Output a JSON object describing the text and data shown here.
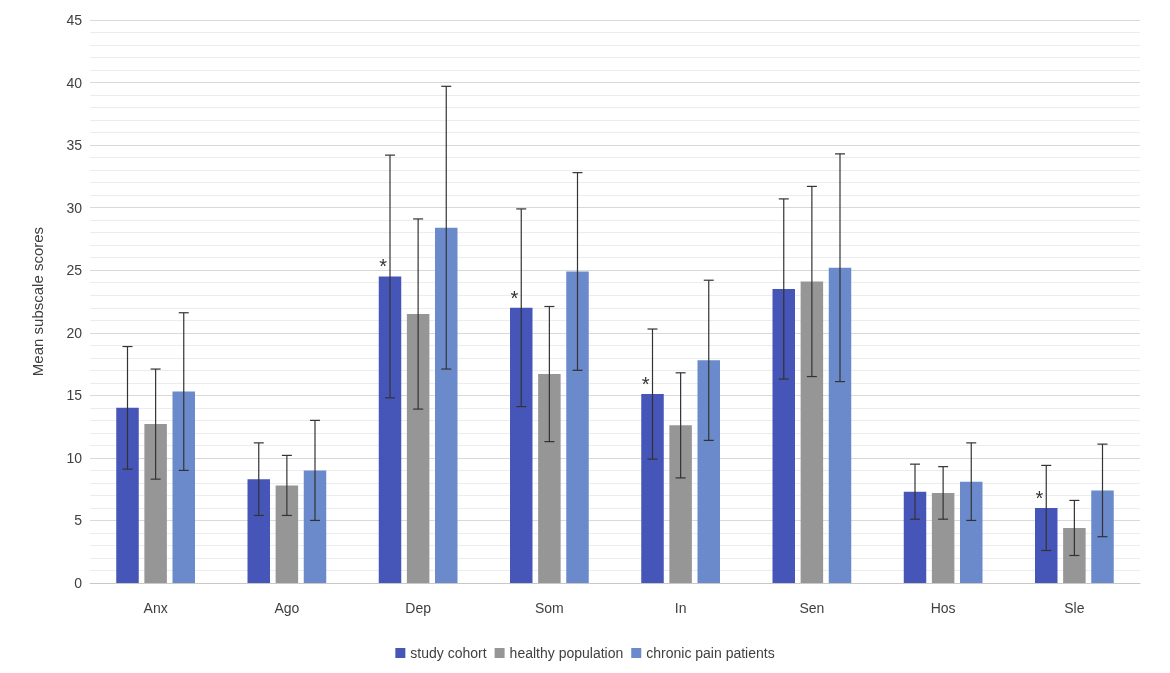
{
  "chart_data": {
    "type": "bar",
    "ylabel": "Mean subscale scores",
    "categories": [
      "Anx",
      "Ago",
      "Dep",
      "Som",
      "In",
      "Sen",
      "Hos",
      "Sle"
    ],
    "series": [
      {
        "name": "study cohort",
        "color": "#4655b8",
        "values": [
          14.0,
          8.3,
          24.5,
          22.0,
          15.1,
          23.5,
          7.3,
          6.0
        ],
        "errors": [
          4.9,
          2.9,
          9.7,
          7.9,
          5.2,
          7.2,
          2.2,
          3.4
        ],
        "value_labels": [
          null,
          null,
          "*",
          "*",
          "*",
          null,
          null,
          "*"
        ]
      },
      {
        "name": "healthy population",
        "color": "#969696",
        "values": [
          12.7,
          7.8,
          21.5,
          16.7,
          12.6,
          24.1,
          7.2,
          4.4
        ],
        "errors": [
          4.4,
          2.4,
          7.6,
          5.4,
          4.2,
          7.6,
          2.1,
          2.2
        ]
      },
      {
        "name": "chronic pain patients",
        "color": "#6a8acb",
        "values": [
          15.3,
          9.0,
          28.4,
          24.9,
          17.8,
          25.2,
          8.1,
          7.4
        ],
        "errors": [
          6.3,
          4.0,
          11.3,
          7.9,
          6.4,
          9.1,
          3.1,
          3.7
        ]
      }
    ],
    "ylim": [
      0,
      45
    ],
    "yticks": [
      0,
      5,
      10,
      15,
      20,
      25,
      30,
      35,
      40,
      45
    ],
    "grid": "y",
    "legend": "bottom"
  }
}
